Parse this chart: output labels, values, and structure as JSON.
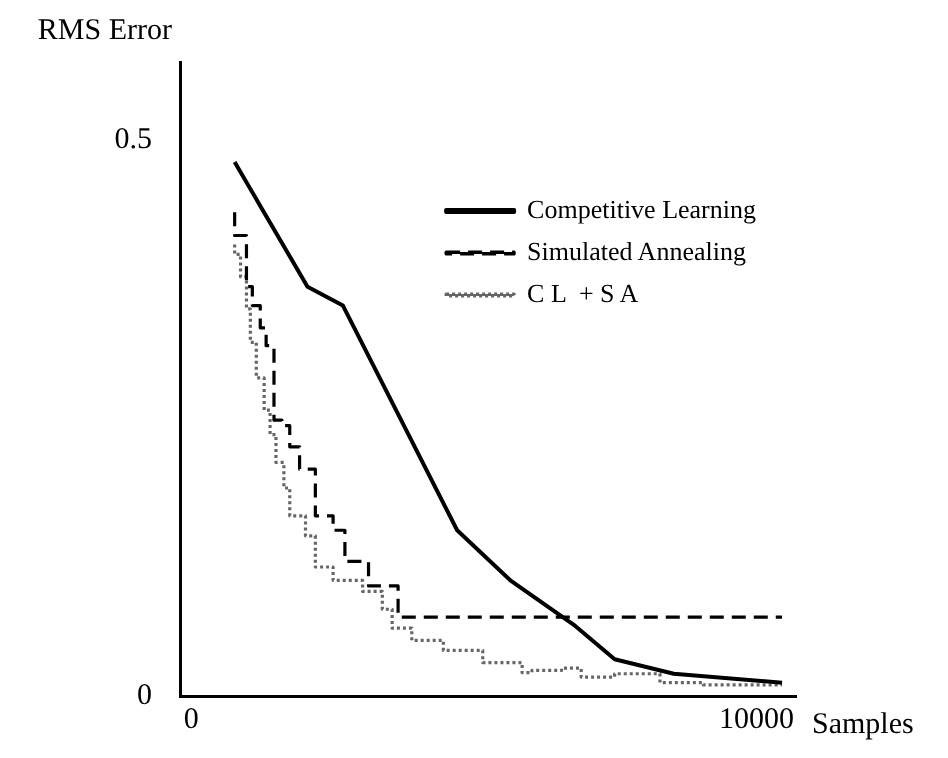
{
  "chart_data": {
    "type": "line",
    "xlabel": "Samples",
    "ylabel": "RMS Error",
    "xlim": [
      -200,
      10700
    ],
    "xticks": [
      0,
      10000
    ],
    "ylim": [
      0,
      0.57
    ],
    "yticks": [
      0,
      0.5
    ],
    "grid": false,
    "legend": "top right",
    "series": [
      {
        "name": "Competitive Learning",
        "color": "#000000",
        "line_style": "solid",
        "x": [
          767,
          2056,
          2683,
          4704,
          5645,
          6794,
          7491,
          8537,
          10453
        ],
        "values": [
          0.48,
          0.368,
          0.351,
          0.149,
          0.104,
          0.063,
          0.033,
          0.02,
          0.012
        ]
      },
      {
        "name": "Simulated Annealing",
        "type": "step",
        "color": "#000000",
        "line_style": "dashed",
        "x": [
          767,
          976,
          1080,
          1220,
          1324,
          1463,
          1603,
          1742,
          1916,
          2195,
          2509,
          2718,
          3136,
          3659,
          4181,
          10453
        ],
        "values": [
          0.435,
          0.414,
          0.368,
          0.351,
          0.331,
          0.315,
          0.248,
          0.243,
          0.224,
          0.204,
          0.162,
          0.149,
          0.121,
          0.099,
          0.071,
          0.071
        ]
      },
      {
        "name": "C L  + S A",
        "type": "step",
        "color": "#666666",
        "line_style": "dotted",
        "x": [
          767,
          871,
          976,
          1045,
          1150,
          1289,
          1394,
          1498,
          1638,
          1742,
          2021,
          2195,
          2509,
          3031,
          3380,
          3554,
          3902,
          4460,
          5157,
          5854,
          6028,
          6551,
          6899,
          7491,
          8293,
          9059,
          10453
        ],
        "values": [
          0.406,
          0.397,
          0.377,
          0.348,
          0.318,
          0.286,
          0.257,
          0.235,
          0.21,
          0.187,
          0.162,
          0.144,
          0.116,
          0.104,
          0.094,
          0.078,
          0.061,
          0.05,
          0.041,
          0.03,
          0.021,
          0.023,
          0.025,
          0.017,
          0.02,
          0.012,
          0.01
        ]
      }
    ]
  }
}
